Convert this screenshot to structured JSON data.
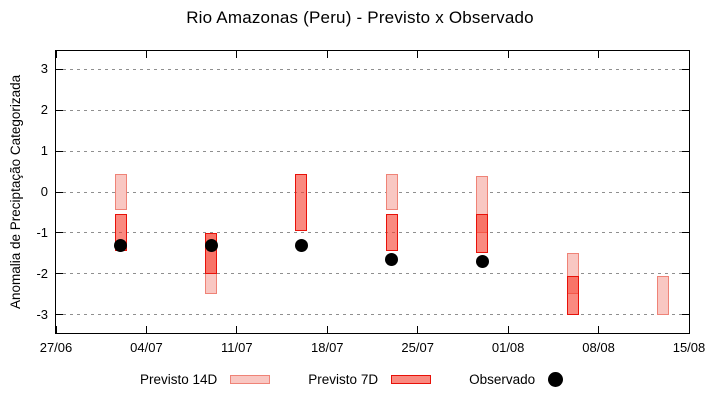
{
  "title": "Rio Amazonas (Peru) - Previsto x Observado",
  "chart_data": {
    "type": "bar",
    "title": "Rio Amazonas (Peru) - Previsto x Observado",
    "xlabel": "",
    "ylabel": "Anomalia de Preciptação Categorizada",
    "ylim": [
      -3.45,
      3.45
    ],
    "y_ticks": [
      3,
      2,
      1,
      0,
      -1,
      -2,
      -3
    ],
    "grid": "horizontal-dotted",
    "legend_position": "bottom-center",
    "x_range_days": 49,
    "x_ticks": [
      {
        "day": 0,
        "label": "27/06"
      },
      {
        "day": 7,
        "label": "04/07"
      },
      {
        "day": 14,
        "label": "11/07"
      },
      {
        "day": 21,
        "label": "18/07"
      },
      {
        "day": 28,
        "label": "25/07"
      },
      {
        "day": 35,
        "label": "01/08"
      },
      {
        "day": 42,
        "label": "08/08"
      },
      {
        "day": 49,
        "label": "15/08"
      }
    ],
    "series": [
      {
        "name": "Previsto 14D",
        "type": "range-box"
      },
      {
        "name": "Previsto 7D",
        "type": "range-box"
      },
      {
        "name": "Observado",
        "type": "point"
      }
    ],
    "groups": [
      {
        "date": "02/07",
        "day": 5,
        "previsto14": [
          0.45,
          -0.45
        ],
        "previsto7": [
          -0.55,
          -1.45
        ],
        "observado": -1.3
      },
      {
        "date": "09/07",
        "day": 12,
        "previsto14": [
          -1.0,
          -2.5
        ],
        "previsto7": [
          -1.0,
          -2.0
        ],
        "observado": -1.3
      },
      {
        "date": "16/07",
        "day": 19,
        "previsto14": null,
        "previsto7": [
          0.45,
          -0.95
        ],
        "observado": -1.3
      },
      {
        "date": "23/07",
        "day": 26,
        "previsto14": [
          0.45,
          -0.45
        ],
        "previsto7": [
          -0.55,
          -1.45
        ],
        "observado": -1.65
      },
      {
        "date": "30/07",
        "day": 33,
        "previsto14": [
          0.4,
          -1.0
        ],
        "previsto7": [
          -0.55,
          -1.5
        ],
        "observado": -1.7
      },
      {
        "date": "06/08",
        "day": 40,
        "previsto14": [
          -1.5,
          -2.5
        ],
        "previsto7": [
          -2.05,
          -3.0
        ],
        "observado": null
      },
      {
        "date": "13/08",
        "day": 47,
        "previsto14": [
          -2.05,
          -3.0
        ],
        "previsto7": null,
        "observado": null
      }
    ],
    "legend": [
      {
        "label": "Previsto 14D",
        "type": "box",
        "fill": "#f9c7c2",
        "border": "#ef8377"
      },
      {
        "label": "Previsto 7D",
        "type": "box",
        "fill": "rgba(247,60,43,0.6)",
        "border": "#e81109"
      },
      {
        "label": "Observado",
        "type": "dot",
        "fill": "#000000"
      }
    ],
    "colors": {
      "previsto14_fill": "#f9c7c2",
      "previsto14_border": "#ef8377",
      "previsto7_fill": "rgba(247,60,43,0.6)",
      "previsto7_border": "#e81109",
      "observado": "#000000",
      "grid": "#8f8f8f",
      "axis": "#000000"
    }
  }
}
